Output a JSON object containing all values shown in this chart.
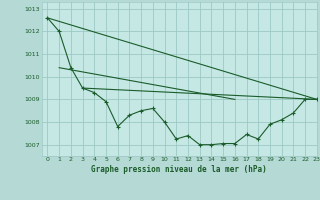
{
  "bg_color": "#b5d9d5",
  "plot_bg_color": "#c5e8e4",
  "grid_color": "#9dc8c4",
  "line_color": "#1a5c2a",
  "title": "Graphe pression niveau de la mer (hPa)",
  "xlim": [
    -0.5,
    23
  ],
  "ylim": [
    1006.5,
    1013.3
  ],
  "yticks": [
    1007,
    1008,
    1009,
    1010,
    1011,
    1012,
    1013
  ],
  "xticks": [
    0,
    1,
    2,
    3,
    4,
    5,
    6,
    7,
    8,
    9,
    10,
    11,
    12,
    13,
    14,
    15,
    16,
    17,
    18,
    19,
    20,
    21,
    22,
    23
  ],
  "series_marker": {
    "x": [
      0,
      1,
      2,
      3,
      4,
      5,
      6,
      7,
      8,
      9,
      10,
      11,
      12,
      13,
      14,
      15,
      16,
      17,
      18,
      19,
      20,
      21,
      22,
      23
    ],
    "y": [
      1012.6,
      1012.0,
      1010.4,
      1009.5,
      1009.3,
      1008.9,
      1007.8,
      1008.3,
      1008.5,
      1008.6,
      1008.0,
      1007.25,
      1007.4,
      1007.0,
      1007.0,
      1007.05,
      1007.05,
      1007.45,
      1007.25,
      1007.9,
      1008.1,
      1008.4,
      1009.0,
      1009.0
    ]
  },
  "series_line1": {
    "x": [
      0,
      23
    ],
    "y": [
      1012.6,
      1009.0
    ]
  },
  "series_line2": {
    "x": [
      1,
      16
    ],
    "y": [
      1010.4,
      1009.0
    ]
  },
  "series_line3": {
    "x": [
      3,
      23
    ],
    "y": [
      1009.5,
      1009.0
    ]
  }
}
